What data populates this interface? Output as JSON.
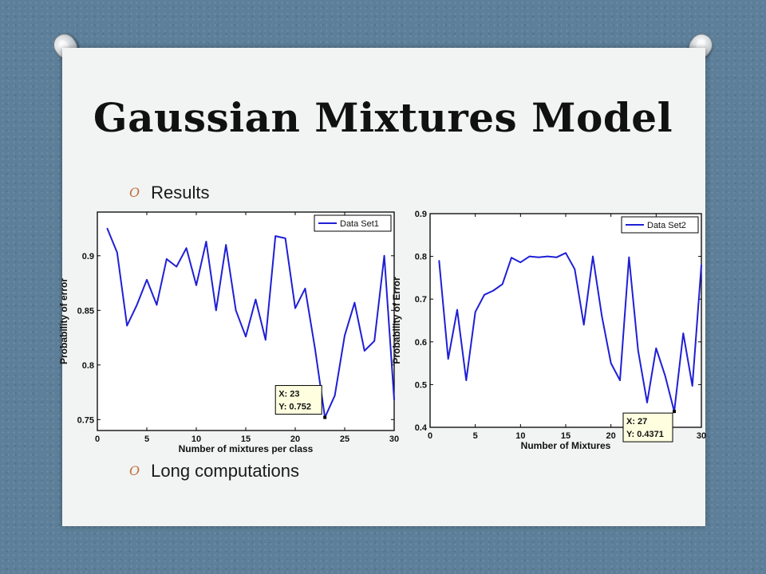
{
  "slide": {
    "title": "Gaussian Mixtures Model",
    "bullets": [
      "Results",
      "Long computations"
    ],
    "bullet_marker": "O"
  },
  "chart_data": [
    {
      "type": "line",
      "xlabel": "Number of mixtures per class",
      "ylabel": "Probability of error",
      "xlim": [
        0,
        30
      ],
      "ylim": [
        0.74,
        0.94
      ],
      "xticks": [
        0,
        5,
        10,
        15,
        20,
        25,
        30
      ],
      "yticks": [
        0.75,
        0.8,
        0.85,
        0.9
      ],
      "legend_position": "top-right",
      "grid": false,
      "series": [
        {
          "name": "Data Set1",
          "color": "#1f1fd6",
          "x": [
            1,
            2,
            3,
            4,
            5,
            6,
            7,
            8,
            9,
            10,
            11,
            12,
            13,
            14,
            15,
            16,
            17,
            18,
            19,
            20,
            21,
            22,
            23,
            24,
            25,
            26,
            27,
            28,
            29,
            30
          ],
          "y": [
            0.925,
            0.903,
            0.836,
            0.855,
            0.878,
            0.855,
            0.897,
            0.89,
            0.907,
            0.873,
            0.913,
            0.85,
            0.91,
            0.85,
            0.826,
            0.86,
            0.823,
            0.918,
            0.916,
            0.852,
            0.87,
            0.815,
            0.752,
            0.772,
            0.827,
            0.857,
            0.813,
            0.822,
            0.9,
            0.768
          ]
        }
      ],
      "datatip": {
        "x_label": "X: 23",
        "y_label": "Y: 0.752",
        "x": 23,
        "y": 0.752
      }
    },
    {
      "type": "line",
      "xlabel": "Number of Mixtures",
      "ylabel": "Probability of Error",
      "xlim": [
        0,
        30
      ],
      "ylim": [
        0.4,
        0.9
      ],
      "xticks": [
        0,
        5,
        10,
        15,
        20,
        25,
        30
      ],
      "yticks": [
        0.4,
        0.5,
        0.6,
        0.7,
        0.8,
        0.9
      ],
      "legend_position": "top-right",
      "grid": false,
      "series": [
        {
          "name": "Data Set2",
          "color": "#1f1fd6",
          "x": [
            1,
            2,
            3,
            4,
            5,
            6,
            7,
            8,
            9,
            10,
            11,
            12,
            13,
            14,
            15,
            16,
            17,
            18,
            19,
            20,
            21,
            22,
            23,
            24,
            25,
            26,
            27,
            28,
            29,
            30
          ],
          "y": [
            0.79,
            0.56,
            0.675,
            0.51,
            0.67,
            0.71,
            0.72,
            0.735,
            0.797,
            0.786,
            0.8,
            0.798,
            0.8,
            0.798,
            0.808,
            0.77,
            0.64,
            0.8,
            0.66,
            0.55,
            0.51,
            0.798,
            0.58,
            0.458,
            0.585,
            0.52,
            0.437,
            0.62,
            0.497,
            0.78
          ]
        }
      ],
      "datatip": {
        "x_label": "X: 27",
        "y_label": "Y: 0.4371",
        "x": 27,
        "y": 0.4371
      }
    }
  ]
}
